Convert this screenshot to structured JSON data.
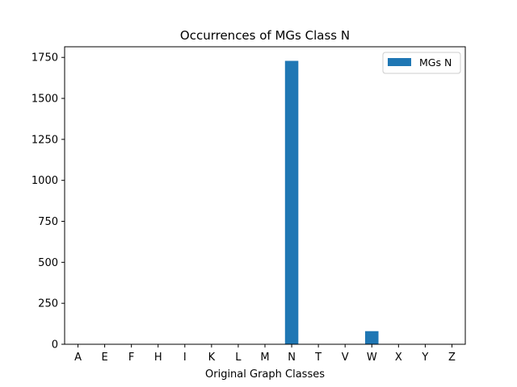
{
  "chart_data": {
    "type": "bar",
    "title": "Occurrences of MGs Class N",
    "xlabel": "Original Graph Classes",
    "ylabel": "",
    "categories": [
      "A",
      "E",
      "F",
      "H",
      "I",
      "K",
      "L",
      "M",
      "N",
      "T",
      "V",
      "W",
      "X",
      "Y",
      "Z"
    ],
    "series": [
      {
        "name": "MGs N",
        "color": "#1f77b4",
        "values": [
          0,
          0,
          0,
          0,
          0,
          0,
          0,
          0,
          1729,
          0,
          0,
          80,
          0,
          0,
          0
        ]
      }
    ],
    "ylim": [
      0,
      1815
    ],
    "yticks": [
      0,
      250,
      500,
      750,
      1000,
      1250,
      1500,
      1750
    ],
    "grid": false,
    "legend_position": "top-right"
  }
}
